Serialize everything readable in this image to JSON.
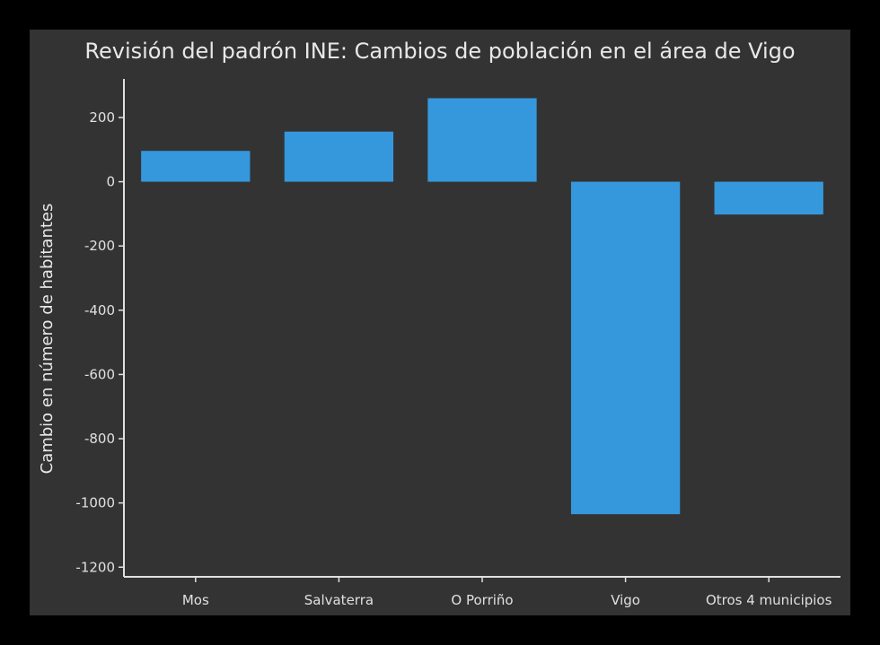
{
  "colors": {
    "background": "#000000",
    "panel": "#333333",
    "bar": "#3598dc",
    "axis": "#e0e0e0",
    "text": "#e8e8e8"
  },
  "chart_data": {
    "type": "bar",
    "title": "Revisión del padrón INE: Cambios de población en el área de Vigo",
    "xlabel": "",
    "ylabel": "Cambio en número de habitantes",
    "categories": [
      "Mos",
      "Salvaterra",
      "O Porriño",
      "Vigo",
      "Otros 4 municipios"
    ],
    "values": [
      96,
      156,
      260,
      -1035,
      -102
    ],
    "ylim": [
      -1230,
      320
    ],
    "yticks": [
      200,
      0,
      -200,
      -400,
      -600,
      -800,
      -1000,
      -1200
    ],
    "ytick_labels": [
      "200",
      "0",
      "-200",
      "-400",
      "-600",
      "-800",
      "-1000",
      "-1200"
    ],
    "grid": false,
    "legend": "none"
  }
}
